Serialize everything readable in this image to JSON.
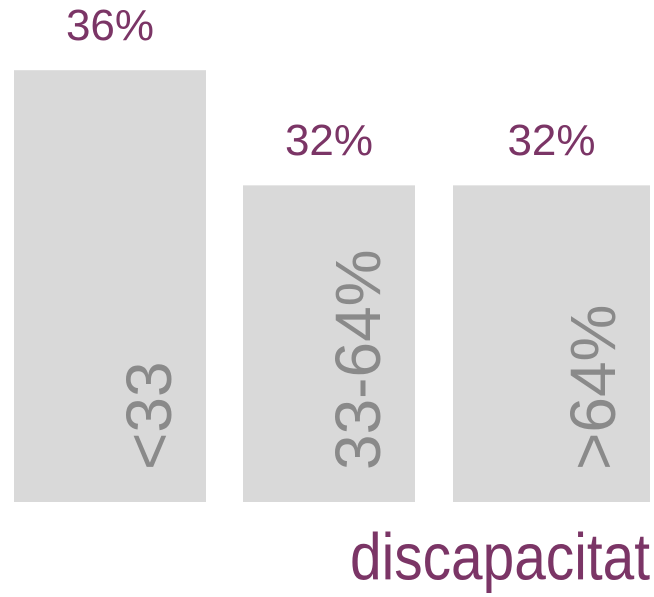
{
  "chart_data": {
    "type": "bar",
    "categories": [
      "<33",
      "33-64%",
      ">64%"
    ],
    "values": [
      36,
      32,
      32
    ],
    "value_labels": [
      "36%",
      "32%",
      "32%"
    ],
    "color": "#d9d9d9",
    "ylim": [
      21,
      37.5
    ],
    "annotation": "discapacitat"
  }
}
